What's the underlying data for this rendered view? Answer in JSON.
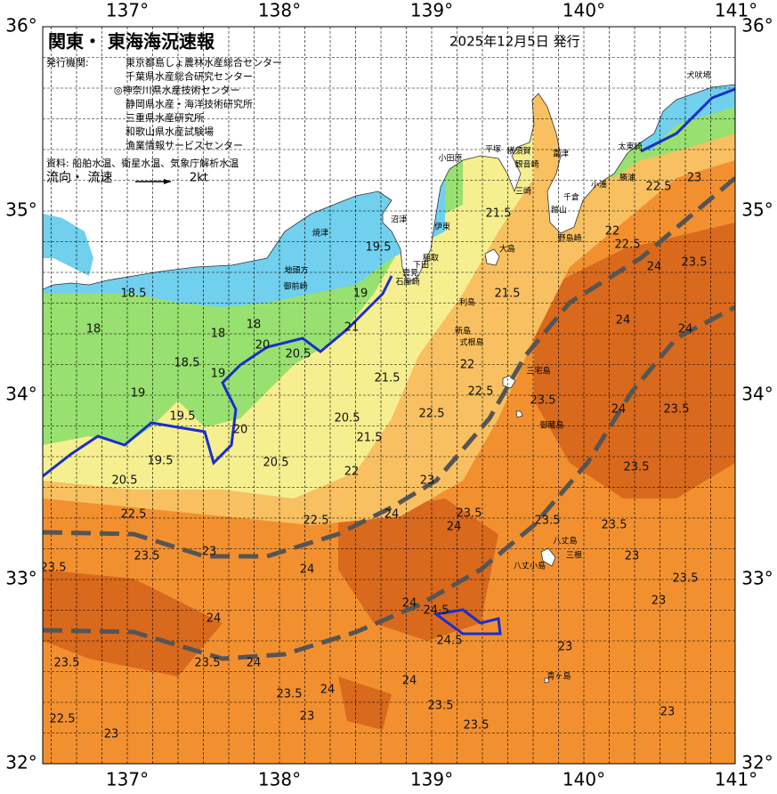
{
  "header": {
    "title": "関東・ 東海海況速報",
    "date": "2025年12月5日 発行",
    "agencies_label": "発行機関:",
    "agencies": [
      "東京都島しょ農林水産総合センター",
      "千葉県水産総合研究センター",
      "◎神奈川県水産技術センター",
      "静岡県水産・海洋技術研究所",
      "三重県水産研究所",
      "和歌山県水産試験場",
      "漁業情報サービスセンター"
    ],
    "source": "資料: 船舶水温、衛星水温、気象庁解析水温",
    "flow_label": "流向・ 流速",
    "flow_unit": "2kt"
  },
  "axes": {
    "lon_labels": [
      "137°",
      "138°",
      "139°",
      "140°",
      "141°"
    ],
    "lat_labels": [
      "36°",
      "35°",
      "34°",
      "33°",
      "32°"
    ]
  },
  "places": [
    "犬吠埼",
    "太東崎",
    "勝浦",
    "小湊",
    "富津",
    "千倉",
    "館山",
    "野島崎",
    "横須賀",
    "観音崎",
    "三崎",
    "平塚",
    "小田原",
    "伊東",
    "稲取",
    "下田",
    "雲見",
    "石廊崎",
    "沼津",
    "焼津",
    "地頭方",
    "御前崎",
    "大島",
    "利島",
    "新島",
    "式根島",
    "三宅島",
    "御蔵島",
    "八丈島",
    "八丈小島",
    "三根",
    "青ヶ島"
  ],
  "contour_labels": [
    "18.5",
    "18",
    "18.5",
    "19",
    "19.5",
    "20",
    "19.5",
    "20.5",
    "20.5",
    "20.5",
    "20.5",
    "21",
    "21.5",
    "22",
    "22.5",
    "22.5",
    "23",
    "23.5",
    "23.5",
    "24",
    "24",
    "24",
    "24",
    "23.5",
    "24",
    "24.5",
    "24.5",
    "23.5",
    "24",
    "23.5",
    "22.5",
    "23",
    "23.5",
    "24",
    "24",
    "23.5",
    "23.5",
    "23",
    "23.5",
    "23.5",
    "23.5",
    "23",
    "23",
    "23",
    "23",
    "24",
    "24",
    "24",
    "22.5",
    "22",
    "23",
    "22.5",
    "22.5",
    "22.5",
    "22",
    "21.5",
    "21.5",
    "21.5",
    "19",
    "20",
    "19",
    "18",
    "18",
    "19.5",
    "23.5",
    "23.5",
    "23",
    "23.5",
    "23.5",
    "24"
  ]
}
